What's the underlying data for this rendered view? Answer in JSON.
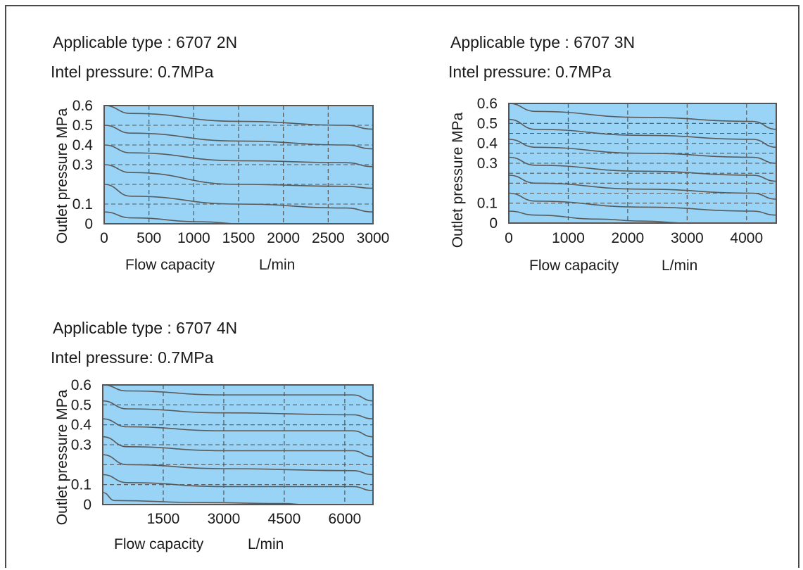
{
  "colors": {
    "plot_bg": "#99d3f5",
    "curve": "#5a5a5a",
    "grid": "#555555",
    "frame": "#555555"
  },
  "chart_data": [
    {
      "type": "line",
      "title": "Applicable type : 6707 2N",
      "subtitle": "Intel pressure: 0.7MPa",
      "xlabel": "Flow capacity",
      "xunit": "L/min",
      "ylabel": "Outlet pressure MPa",
      "xlim": [
        0,
        3000
      ],
      "ylim": [
        0,
        0.6
      ],
      "xticks": [
        0,
        500,
        1000,
        1500,
        2000,
        2500,
        3000
      ],
      "xtick_labels": [
        "0",
        "500",
        "1000",
        "1500",
        "2000",
        "2500",
        "3000"
      ],
      "yticks": [
        0.0,
        0.1,
        0.2,
        0.3,
        0.4,
        0.5,
        0.6
      ],
      "ytick_labels": [
        "0",
        "0.1",
        "",
        "0.3",
        "0.4",
        "0.5",
        "0.6"
      ],
      "ref_lines": [
        0.1,
        0.2,
        0.3,
        0.4,
        0.5
      ],
      "grid": true,
      "series": [
        {
          "x": [
            0,
            300,
            1500,
            2700,
            3000
          ],
          "y": [
            0.6,
            0.56,
            0.52,
            0.5,
            0.48
          ]
        },
        {
          "x": [
            0,
            300,
            1500,
            2700,
            3000
          ],
          "y": [
            0.5,
            0.46,
            0.42,
            0.4,
            0.38
          ]
        },
        {
          "x": [
            0,
            300,
            1500,
            2700,
            3000
          ],
          "y": [
            0.4,
            0.36,
            0.32,
            0.31,
            0.29
          ]
        },
        {
          "x": [
            0,
            300,
            1500,
            2700,
            3000
          ],
          "y": [
            0.3,
            0.26,
            0.2,
            0.19,
            0.18
          ]
        },
        {
          "x": [
            0,
            300,
            1500,
            2700,
            3000
          ],
          "y": [
            0.2,
            0.14,
            0.1,
            0.08,
            0.06
          ]
        },
        {
          "x": [
            0,
            300,
            1100,
            1500
          ],
          "y": [
            0.06,
            0.03,
            0.01,
            0.0
          ]
        }
      ]
    },
    {
      "type": "line",
      "title": "Applicable type : 6707 3N",
      "subtitle": "Intel pressure: 0.7MPa",
      "xlabel": "Flow capacity",
      "xunit": "L/min",
      "ylabel": "Outlet pressure MPa",
      "xlim": [
        0,
        4500
      ],
      "ylim": [
        0,
        0.6
      ],
      "xticks": [
        0,
        1000,
        2000,
        3000,
        4000
      ],
      "xtick_labels": [
        "0",
        "1000",
        "2000",
        "3000",
        "4000"
      ],
      "yticks": [
        0.0,
        0.1,
        0.2,
        0.3,
        0.4,
        0.5,
        0.6
      ],
      "ytick_labels": [
        "0",
        "0.1",
        "",
        "0.3",
        "0.4",
        "0.5",
        "0.6"
      ],
      "ref_lines": [
        0.1,
        0.15,
        0.2,
        0.25,
        0.3,
        0.35,
        0.4,
        0.45,
        0.5
      ],
      "grid": true,
      "series": [
        {
          "x": [
            0,
            450,
            2250,
            4100,
            4500
          ],
          "y": [
            0.6,
            0.56,
            0.53,
            0.51,
            0.47
          ]
        },
        {
          "x": [
            0,
            450,
            2250,
            4100,
            4500
          ],
          "y": [
            0.52,
            0.47,
            0.44,
            0.42,
            0.38
          ]
        },
        {
          "x": [
            0,
            450,
            2250,
            4100,
            4500
          ],
          "y": [
            0.42,
            0.38,
            0.35,
            0.33,
            0.3
          ]
        },
        {
          "x": [
            0,
            450,
            2250,
            4100,
            4500
          ],
          "y": [
            0.33,
            0.29,
            0.26,
            0.24,
            0.21
          ]
        },
        {
          "x": [
            0,
            450,
            2250,
            4100,
            4500
          ],
          "y": [
            0.24,
            0.2,
            0.17,
            0.15,
            0.12
          ]
        },
        {
          "x": [
            0,
            450,
            2250,
            4100,
            4500
          ],
          "y": [
            0.15,
            0.11,
            0.08,
            0.06,
            0.04
          ]
        },
        {
          "x": [
            0,
            450,
            1500,
            2250,
            3000
          ],
          "y": [
            0.06,
            0.04,
            0.02,
            0.01,
            0.0
          ]
        }
      ]
    },
    {
      "type": "line",
      "title": "Applicable type : 6707 4N",
      "subtitle": "Intel pressure: 0.7MPa",
      "xlabel": "Flow capacity",
      "xunit": "L/min",
      "ylabel": "Outlet pressure MPa",
      "xlim": [
        0,
        6700
      ],
      "ylim": [
        0,
        0.6
      ],
      "xticks": [
        1500,
        3000,
        4500,
        6000
      ],
      "xtick_labels": [
        "1500",
        "3000",
        "4500",
        "6000"
      ],
      "yticks": [
        0.0,
        0.1,
        0.2,
        0.3,
        0.4,
        0.5,
        0.6
      ],
      "ytick_labels": [
        "0",
        "0.1",
        "",
        "0.3",
        "0.4",
        "0.5",
        "0.6"
      ],
      "ref_lines": [
        0.1,
        0.2,
        0.3,
        0.4,
        0.5
      ],
      "grid": true,
      "series": [
        {
          "x": [
            0,
            600,
            3000,
            6200,
            6700
          ],
          "y": [
            0.6,
            0.57,
            0.55,
            0.55,
            0.52
          ]
        },
        {
          "x": [
            0,
            600,
            3000,
            6200,
            6700
          ],
          "y": [
            0.52,
            0.48,
            0.46,
            0.45,
            0.43
          ]
        },
        {
          "x": [
            0,
            600,
            3000,
            6200,
            6700
          ],
          "y": [
            0.43,
            0.39,
            0.37,
            0.37,
            0.34
          ]
        },
        {
          "x": [
            0,
            600,
            3000,
            6200,
            6700
          ],
          "y": [
            0.34,
            0.29,
            0.27,
            0.27,
            0.24
          ]
        },
        {
          "x": [
            0,
            600,
            3000,
            6200,
            6700
          ],
          "y": [
            0.25,
            0.2,
            0.18,
            0.17,
            0.15
          ]
        },
        {
          "x": [
            0,
            600,
            3000,
            6200,
            6700
          ],
          "y": [
            0.15,
            0.11,
            0.09,
            0.09,
            0.07
          ]
        },
        {
          "x": [
            0,
            300,
            2500,
            4500,
            5000
          ],
          "y": [
            0.06,
            0.02,
            0.01,
            0.005,
            0.0
          ]
        }
      ]
    }
  ]
}
